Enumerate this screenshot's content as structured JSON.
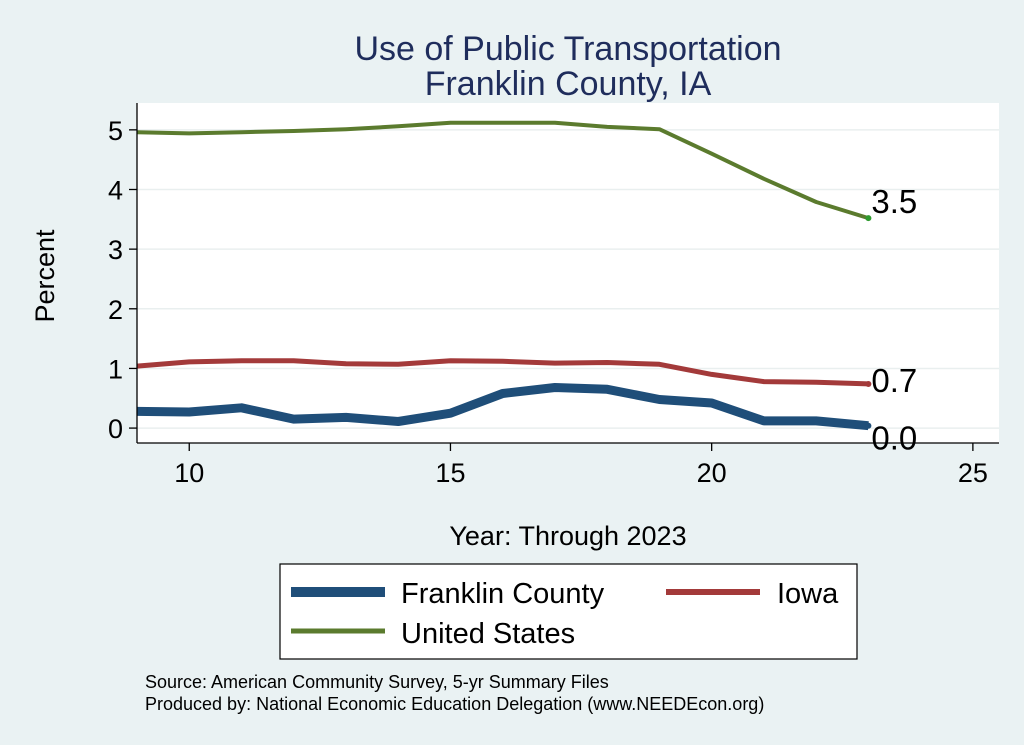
{
  "chart_data": {
    "type": "line",
    "title": "Use of Public Transportation",
    "subtitle": "Franklin County, IA",
    "xlabel": "Year: Through 2023",
    "ylabel": "Percent",
    "xlim": [
      9,
      25.5
    ],
    "ylim": [
      -0.25,
      5.45
    ],
    "xticks": [
      10,
      15,
      20,
      25
    ],
    "yticks": [
      0,
      1,
      2,
      3,
      4,
      5
    ],
    "grid": true,
    "legend_position": "bottom",
    "x": [
      9,
      10,
      11,
      12,
      13,
      14,
      15,
      16,
      17,
      18,
      19,
      20,
      21,
      22,
      23
    ],
    "series": [
      {
        "name": "Franklin County",
        "color": "#1f4e79",
        "values": [
          0.28,
          0.27,
          0.34,
          0.15,
          0.18,
          0.11,
          0.25,
          0.58,
          0.68,
          0.65,
          0.48,
          0.42,
          0.12,
          0.12,
          0.04
        ],
        "end_label": "0.0"
      },
      {
        "name": "Iowa",
        "color": "#a33a3a",
        "values": [
          1.04,
          1.11,
          1.13,
          1.13,
          1.08,
          1.07,
          1.13,
          1.12,
          1.09,
          1.1,
          1.07,
          0.9,
          0.78,
          0.77,
          0.74
        ],
        "end_label": "0.7"
      },
      {
        "name": "United States",
        "color": "#5b7b2e",
        "values": [
          4.96,
          4.94,
          4.96,
          4.98,
          5.01,
          5.06,
          5.12,
          5.12,
          5.12,
          5.05,
          5.01,
          4.6,
          4.18,
          3.79,
          3.52
        ],
        "end_label": "3.5"
      }
    ],
    "notes": [
      "Source: American Community Survey, 5-yr Summary Files",
      "Produced by: National Economic Education Delegation (www.NEEDEcon.org)"
    ]
  }
}
